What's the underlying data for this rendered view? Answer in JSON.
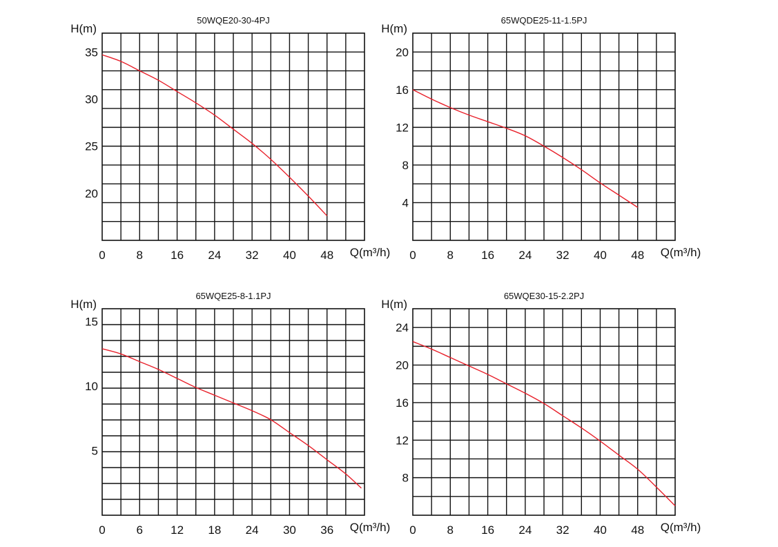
{
  "chart_data": [
    {
      "type": "line",
      "title": "50WQE20-30-4PJ",
      "ylabel": "H(m)",
      "xlabel": "Q(m³/h)",
      "grid": true,
      "xlim": [
        0,
        56
      ],
      "ylim": [
        15,
        37
      ],
      "xticks": [
        0,
        8,
        16,
        24,
        32,
        40,
        48
      ],
      "xtick_labels": [
        "0",
        "8",
        "16",
        "24",
        "32",
        "40",
        "48"
      ],
      "yticks": [
        20,
        25,
        30,
        35
      ],
      "ytick_labels": [
        "20",
        "25",
        "30",
        "35"
      ],
      "grid_x_cols": 14,
      "grid_y_rows": 11,
      "line_color": "#e8202a",
      "series": [
        {
          "x": [
            0,
            4,
            8,
            12,
            16,
            20,
            24,
            28,
            32,
            36,
            40,
            44,
            48
          ],
          "y": [
            34.7,
            34.0,
            33.0,
            32.0,
            30.8,
            29.6,
            28.3,
            26.8,
            25.3,
            23.6,
            21.7,
            19.7,
            17.6
          ]
        }
      ]
    },
    {
      "type": "line",
      "title": "65WQDE25-11-1.5PJ",
      "ylabel": "H(m)",
      "xlabel": "Q(m³/h)",
      "grid": true,
      "xlim": [
        0,
        56
      ],
      "ylim": [
        0,
        22
      ],
      "xticks": [
        0,
        8,
        16,
        24,
        32,
        40,
        48
      ],
      "xtick_labels": [
        "0",
        "8",
        "16",
        "24",
        "32",
        "40",
        "48"
      ],
      "yticks": [
        4,
        8,
        12,
        16,
        20
      ],
      "ytick_labels": [
        "4",
        "8",
        "12",
        "16",
        "20"
      ],
      "grid_x_cols": 14,
      "grid_y_rows": 11,
      "line_color": "#e8202a",
      "series": [
        {
          "x": [
            0,
            4,
            8,
            12,
            16,
            20,
            24,
            28,
            32,
            36,
            40,
            44,
            48
          ],
          "y": [
            16.0,
            15.0,
            14.1,
            13.3,
            12.6,
            11.9,
            11.1,
            10.0,
            8.8,
            7.5,
            6.1,
            4.8,
            3.5
          ]
        }
      ]
    },
    {
      "type": "line",
      "title": "65WQE25-8-1.1PJ",
      "ylabel": "H(m)",
      "xlabel": "Q(m³/h)",
      "grid": true,
      "xlim": [
        0,
        42
      ],
      "ylim": [
        0,
        16
      ],
      "xticks": [
        0,
        6,
        12,
        18,
        24,
        30,
        36
      ],
      "xtick_labels": [
        "0",
        "6",
        "12",
        "18",
        "24",
        "30",
        "36"
      ],
      "yticks": [
        5,
        10,
        15
      ],
      "ytick_labels": [
        "5",
        "10",
        "15"
      ],
      "grid_x_cols": 14,
      "grid_y_rows": 13,
      "line_color": "#e8202a",
      "series": [
        {
          "x": [
            0,
            3,
            6,
            9,
            12,
            15,
            18,
            21,
            24,
            27,
            30,
            33,
            36,
            39,
            41.5
          ],
          "y": [
            12.9,
            12.5,
            11.9,
            11.3,
            10.6,
            9.9,
            9.3,
            8.7,
            8.1,
            7.4,
            6.4,
            5.4,
            4.3,
            3.2,
            2.1
          ]
        }
      ]
    },
    {
      "type": "line",
      "title": "65WQE30-15-2.2PJ",
      "ylabel": "H(m)",
      "xlabel": "Q(m³/h)",
      "grid": true,
      "xlim": [
        0,
        56
      ],
      "ylim": [
        4,
        26
      ],
      "xticks": [
        0,
        8,
        16,
        24,
        32,
        40,
        48
      ],
      "xtick_labels": [
        "0",
        "8",
        "16",
        "24",
        "32",
        "40",
        "48"
      ],
      "yticks": [
        8,
        12,
        16,
        20,
        24
      ],
      "ytick_labels": [
        "8",
        "12",
        "16",
        "20",
        "24"
      ],
      "grid_x_cols": 14,
      "grid_y_rows": 11,
      "line_color": "#e8202a",
      "series": [
        {
          "x": [
            0,
            4,
            8,
            12,
            16,
            20,
            24,
            28,
            32,
            36,
            40,
            44,
            48,
            52,
            56
          ],
          "y": [
            22.5,
            21.7,
            20.8,
            19.9,
            19.0,
            18.0,
            17.0,
            15.9,
            14.6,
            13.3,
            11.9,
            10.4,
            8.9,
            7.0,
            5.0
          ]
        }
      ]
    }
  ]
}
